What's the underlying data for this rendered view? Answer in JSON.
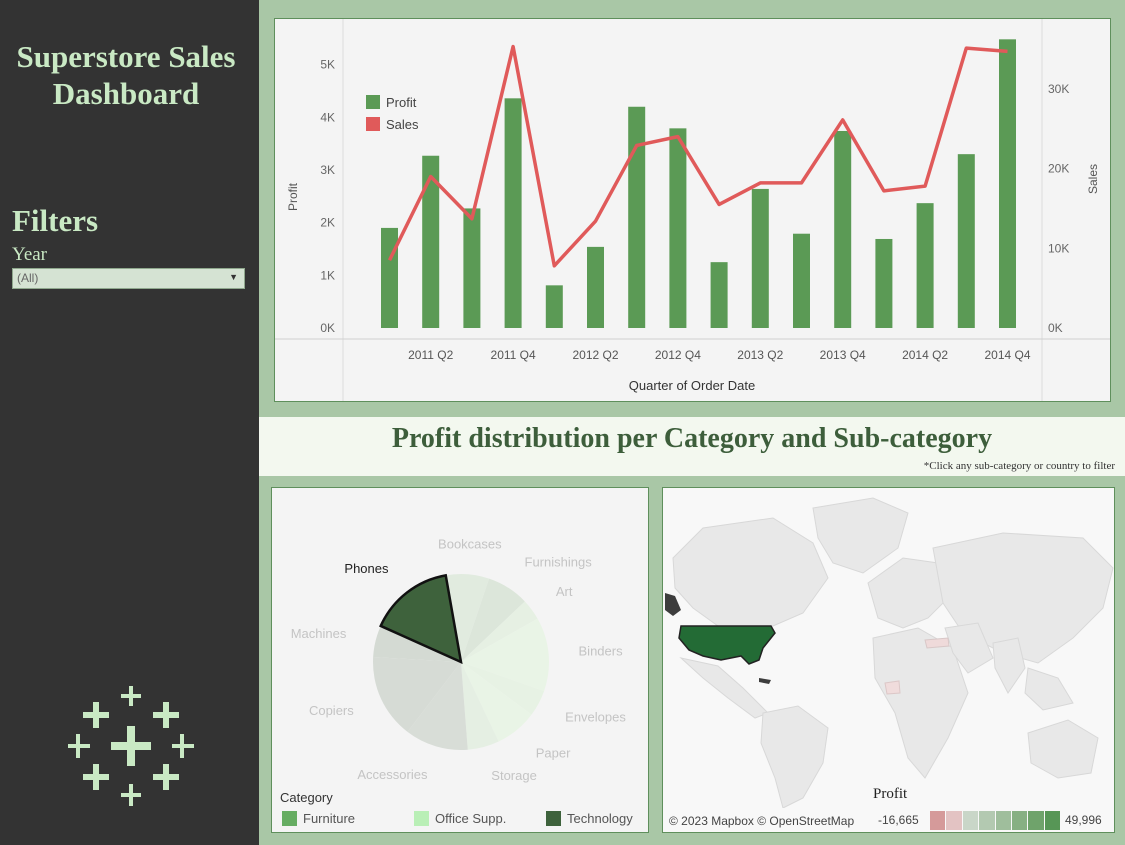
{
  "sidebar": {
    "title": "Superstore Sales Dashboard",
    "filters_heading": "Filters",
    "year_label": "Year",
    "year_value": "(All)",
    "logo_icon": "tableau-logo-icon"
  },
  "chart_data": [
    {
      "type": "bar+line",
      "xlabel": "Quarter of Order Date",
      "ylabel": "Profit",
      "ylabel_right": "Sales",
      "categories": [
        "2011 Q1",
        "2011 Q2",
        "2011 Q3",
        "2011 Q4",
        "2012 Q1",
        "2012 Q2",
        "2012 Q3",
        "2012 Q4",
        "2013 Q1",
        "2013 Q2",
        "2013 Q3",
        "2013 Q4",
        "2014 Q1",
        "2014 Q2",
        "2014 Q3",
        "2014 Q4"
      ],
      "tick_labels": [
        "2011 Q2",
        "2011 Q4",
        "2012 Q2",
        "2012 Q4",
        "2013 Q2",
        "2013 Q4",
        "2014 Q2",
        "2014 Q4"
      ],
      "y_ticks_left": [
        "0K",
        "1K",
        "2K",
        "3K",
        "4K",
        "5K"
      ],
      "y_ticks_right": [
        "0K",
        "10K",
        "20K",
        "30K"
      ],
      "ylim_left": [
        0,
        5600
      ],
      "ylim_right": [
        0,
        37000
      ],
      "grid": false,
      "legend_placement": "top-left",
      "series": [
        {
          "name": "Profit",
          "type": "bar",
          "color": "#5b9a55",
          "values": [
            1900,
            3270,
            2270,
            4360,
            810,
            1540,
            4200,
            3790,
            1250,
            2640,
            1790,
            3740,
            1690,
            2370,
            3300,
            5480
          ]
        },
        {
          "name": "Sales",
          "type": "line",
          "color": "#e05a5a",
          "values": [
            8500,
            19000,
            13700,
            35300,
            7800,
            13400,
            22900,
            24000,
            15500,
            18200,
            18200,
            26100,
            17200,
            17800,
            35100,
            34700
          ]
        }
      ]
    },
    {
      "type": "pie",
      "legend_title": "Category",
      "categories": [
        {
          "name": "Furniture",
          "color": "#66ad62"
        },
        {
          "name": "Office Supp.",
          "color": "#b9efb6"
        },
        {
          "name": "Technology",
          "color": "#3e623c"
        }
      ],
      "slices": [
        {
          "label": "Bookcases",
          "category": "Furniture",
          "value": 4.1,
          "color": "#e1ebdf"
        },
        {
          "label": "Furnishings",
          "category": "Furniture",
          "value": 4.0,
          "color": "#dce6da"
        },
        {
          "label": "Art",
          "category": "Office Supp.",
          "value": 2.0,
          "color": "#e6f0e3"
        },
        {
          "label": "Binders",
          "category": "Office Supp.",
          "value": 7.0,
          "color": "#e9f4e6"
        },
        {
          "label": "Envelopes",
          "category": "Office Supp.",
          "value": 2.5,
          "color": "#e7f2e4"
        },
        {
          "label": "Paper",
          "category": "Office Supp.",
          "value": 4.0,
          "color": "#e9f4e6"
        },
        {
          "label": "Storage",
          "category": "Office Supp.",
          "value": 3.0,
          "color": "#e5efe3"
        },
        {
          "label": "Accessories",
          "category": "Technology",
          "value": 6.0,
          "color": "#d8ddd7"
        },
        {
          "label": "Copiers",
          "category": "Technology",
          "value": 8.0,
          "color": "#d6dbd5"
        },
        {
          "label": "Machines",
          "category": "Technology",
          "value": 3.0,
          "color": "#d4dad3"
        },
        {
          "label": "Phones",
          "category": "Technology",
          "value": 8.0,
          "color": "#3e623c",
          "highlighted": true
        }
      ]
    }
  ],
  "section": {
    "title": "Profit distribution per Category and Sub-category",
    "note": "*Click any sub-category or country to filter"
  },
  "map": {
    "credit": "© 2023 Mapbox  © OpenStreetMap",
    "legend_title": "Profit",
    "min_label": "-16,665",
    "max_label": "49,996",
    "ramp_colors": [
      "#d59a9a",
      "#e3c3c3",
      "#c9d6c8",
      "#b3c9b1",
      "#9fbe9c",
      "#87b083",
      "#6fa36b",
      "#579656"
    ],
    "highlight_color": "#236b35",
    "highlighted_country": "United States"
  }
}
